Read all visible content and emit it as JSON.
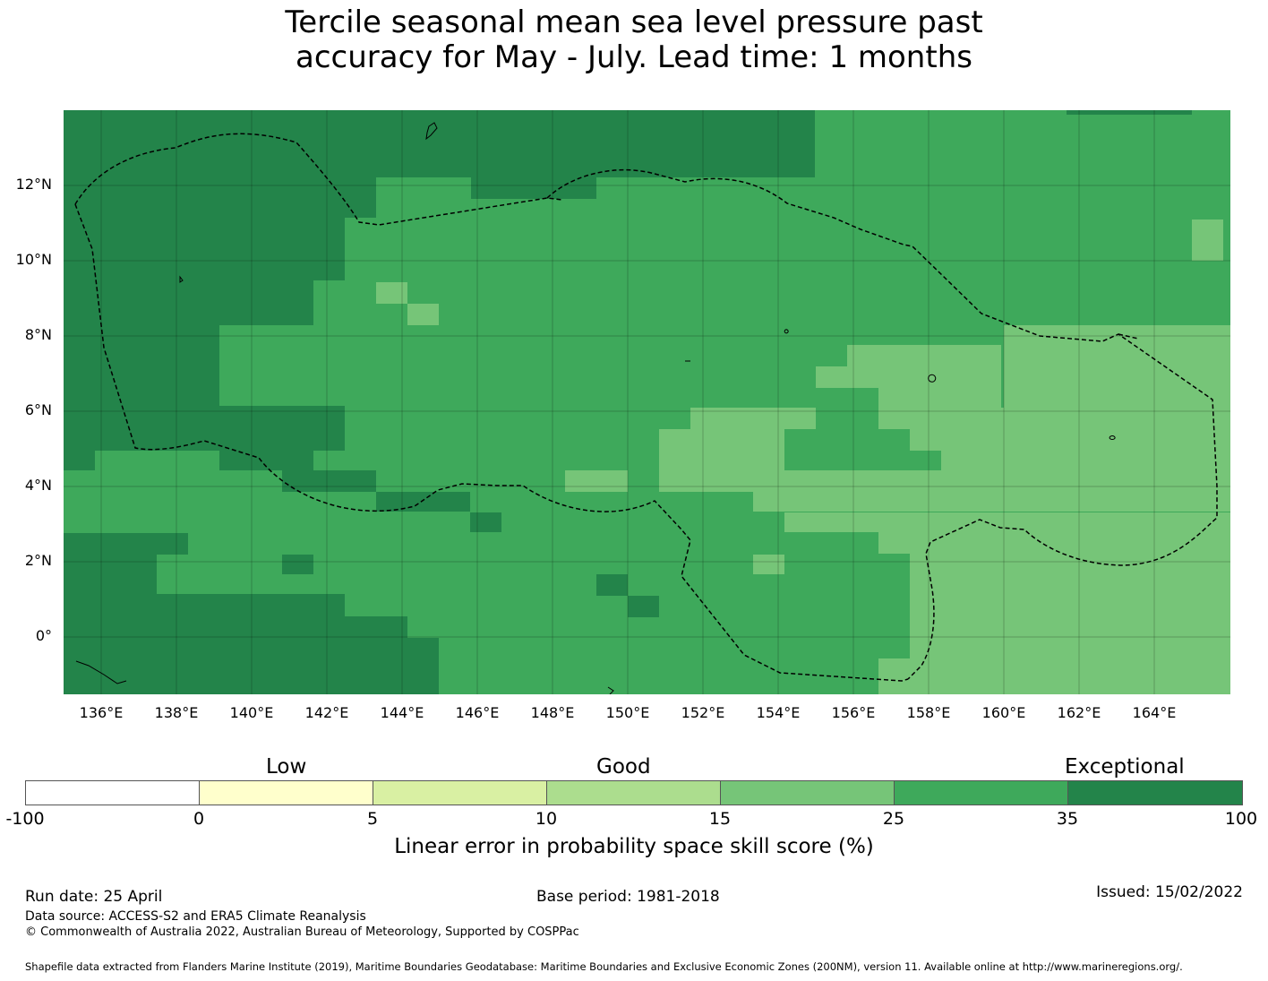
{
  "title": {
    "line1": "Tercile seasonal mean sea level pressure past",
    "line2": "accuracy for May - July. Lead time: 1 months"
  },
  "map": {
    "lat_labels": [
      "12°N",
      "10°N",
      "8°N",
      "6°N",
      "4°N",
      "2°N",
      "0°"
    ],
    "lon_labels": [
      "136°E",
      "138°E",
      "140°E",
      "142°E",
      "144°E",
      "146°E",
      "148°E",
      "150°E",
      "152°E",
      "154°E",
      "156°E",
      "158°E",
      "160°E",
      "162°E",
      "164°E"
    ],
    "colors": {
      "exceptional": "#23844a",
      "band_25_35": "#3ea95b",
      "band_15_25": "#76c578",
      "band_10_15": "#acdd8e",
      "band_5_10": "#d9f0a3",
      "band_0_5": "#ffffcc",
      "band_neg": "#ffffff"
    }
  },
  "colorbar": {
    "category_labels": [
      "Low",
      "Good",
      "Exceptional"
    ],
    "ticks": [
      "-100",
      "0",
      "5",
      "10",
      "15",
      "25",
      "35",
      "100"
    ],
    "colors": [
      "#ffffff",
      "#ffffcc",
      "#d9f0a3",
      "#acdd8e",
      "#76c578",
      "#3ea95b",
      "#23844a"
    ],
    "label": "Linear error in probability space skill score (%)"
  },
  "footer": {
    "run_date": "Run date: 25 April",
    "base_period": "Base period: 1981-2018",
    "issued": "Issued: 15/02/2022",
    "data_source": "Data source: ACCESS-S2 and ERA5 Climate Reanalysis",
    "copyright": "© Commonwealth of Australia 2022, Australian Bureau of Meteorology, Supported by COSPPac",
    "shapefile": "Shapefile data extracted from Flanders Marine Institute (2019), Maritime Boundaries Geodatabase: Maritime Boundaries and Exclusive Economic Zones (200NM), version 11. Available online at http://www.marineregions.org/."
  }
}
